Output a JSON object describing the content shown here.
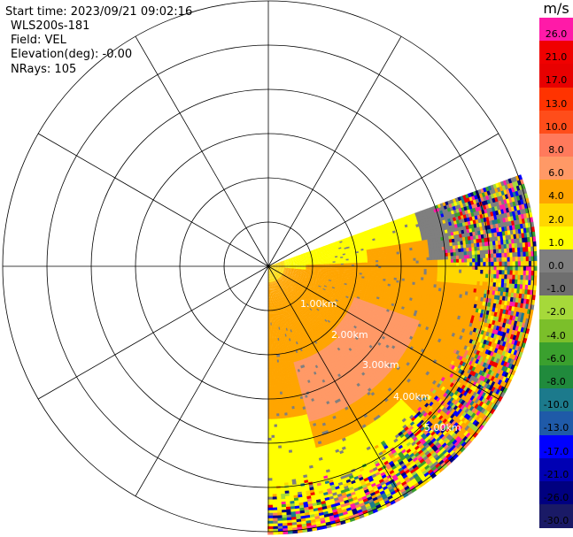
{
  "info": {
    "start_time": "Start time: 2023/09/21 09:02:16",
    "device": "WLS200s-181",
    "field": "Field: VEL",
    "elevation": "Elevation(deg): -0.00",
    "nrays": "NRays: 105"
  },
  "chart_data": {
    "type": "heatmap",
    "projection": "polar-ppi",
    "field": "VEL",
    "unit": "m/s",
    "rays": 105,
    "azimuth_coverage_deg": [
      70,
      180
    ],
    "range_km_max": 6.0,
    "range_rings": [
      "1.00km",
      "2.00km",
      "3.00km",
      "4.00km",
      "5.00km"
    ],
    "colorbar": {
      "unit": "m/s",
      "ticks": [
        "26.0",
        "21.0",
        "17.0",
        "13.0",
        "10.0",
        "8.0",
        "6.0",
        "4.0",
        "2.0",
        "1.0",
        "0.0",
        "-1.0",
        "-2.0",
        "-4.0",
        "-6.0",
        "-8.0",
        "-10.0",
        "-13.0",
        "-17.0",
        "-21.0",
        "-26.0",
        "-30.0"
      ],
      "colors": [
        "#ff1aa8",
        "#f00000",
        "#e80000",
        "#ff3300",
        "#ff4d1a",
        "#ff7a5c",
        "#ff9966",
        "#ffa500",
        "#ffd700",
        "#ffff00",
        "#7f7f7f",
        "#6e6e6e",
        "#a6d93a",
        "#7bbf2a",
        "#3aa02e",
        "#208a3c",
        "#1c7a8c",
        "#1f5aa8",
        "#0000ff",
        "#0000b3",
        "#000080",
        "#1a1a66"
      ]
    }
  }
}
